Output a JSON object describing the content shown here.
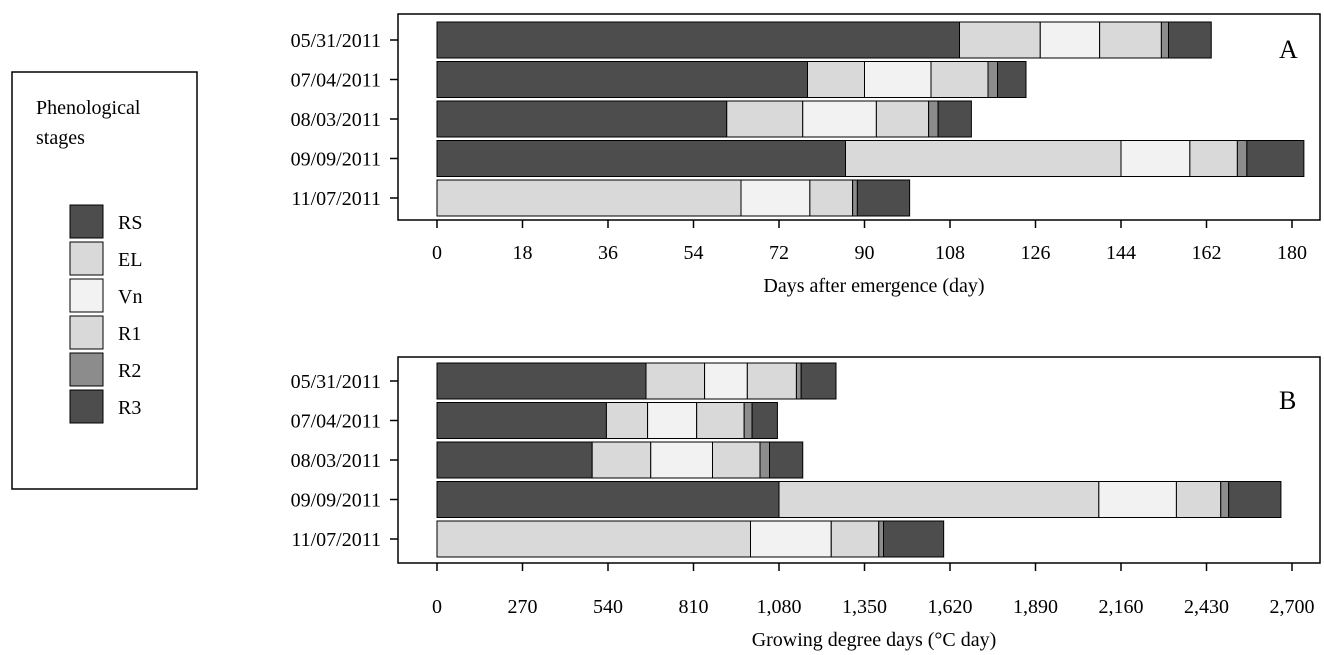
{
  "legend": {
    "title_line1": "Phenological",
    "title_line2": "stages",
    "items": [
      {
        "label": "RS",
        "color": "#4d4d4d"
      },
      {
        "label": "EL",
        "color": "#d9d9d9"
      },
      {
        "label": "Vn",
        "color": "#f2f2f2"
      },
      {
        "label": "R1",
        "color": "#d9d9d9"
      },
      {
        "label": "R2",
        "color": "#8c8c8c"
      },
      {
        "label": "R3",
        "color": "#4d4d4d"
      }
    ]
  },
  "chart_data": [
    {
      "type": "bar",
      "orientation": "horizontal",
      "stacked": true,
      "panel_label": "A",
      "xlabel": "Days after emergence (day)",
      "xlim": [
        0,
        180
      ],
      "xticks": [
        "0",
        "18",
        "36",
        "54",
        "72",
        "90",
        "108",
        "126",
        "144",
        "162",
        "180"
      ],
      "categories": [
        "05/31/2011",
        "07/04/2011",
        "08/03/2011",
        "09/09/2011",
        "11/07/2011"
      ],
      "series": [
        {
          "name": "RS",
          "values": [
            110,
            78,
            61,
            86,
            0
          ]
        },
        {
          "name": "EL",
          "values": [
            17,
            12,
            16,
            58,
            64
          ]
        },
        {
          "name": "Vn",
          "values": [
            12.5,
            14,
            15.5,
            14.5,
            14.5
          ]
        },
        {
          "name": "R1",
          "values": [
            13,
            12,
            11,
            10,
            9
          ]
        },
        {
          "name": "R2",
          "values": [
            1.5,
            2,
            2,
            2,
            1
          ]
        },
        {
          "name": "R3",
          "values": [
            9,
            6,
            7,
            12,
            11
          ]
        }
      ]
    },
    {
      "type": "bar",
      "orientation": "horizontal",
      "stacked": true,
      "panel_label": "B",
      "xlabel": "Growing degree days (°C day)",
      "xlim": [
        0,
        2700
      ],
      "xticks": [
        "0",
        "270",
        "540",
        "810",
        "1,080",
        "1,350",
        "1,620",
        "1,890",
        "2,160",
        "2,430",
        "2,700"
      ],
      "categories": [
        "05/31/2011",
        "07/04/2011",
        "08/03/2011",
        "09/09/2011",
        "11/07/2011"
      ],
      "series": [
        {
          "name": "RS",
          "values": [
            660,
            535,
            490,
            1080,
            0
          ]
        },
        {
          "name": "EL",
          "values": [
            185,
            130,
            185,
            1010,
            990
          ]
        },
        {
          "name": "Vn",
          "values": [
            135,
            155,
            195,
            245,
            255
          ]
        },
        {
          "name": "R1",
          "values": [
            155,
            150,
            150,
            140,
            150
          ]
        },
        {
          "name": "R2",
          "values": [
            15,
            25,
            30,
            25,
            15
          ]
        },
        {
          "name": "R3",
          "values": [
            110,
            80,
            105,
            165,
            190
          ]
        }
      ]
    }
  ]
}
